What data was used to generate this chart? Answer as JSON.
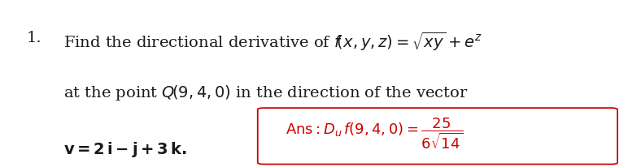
{
  "background_color": "#ffffff",
  "fig_width": 7.72,
  "fig_height": 2.07,
  "dpi": 100,
  "text_color_black": "#1a1a1a",
  "text_color_red": "#cc0000",
  "line1_number": "1.",
  "line1_main": "Find the directional derivative of $f\\left(x,y,z\\right)=\\sqrt{xy}+e^{z}$",
  "line2_main": "at the point $Q\\left(9,4,0\\right)$ in the direction of the vector",
  "line3_bold": "$\\mathbf{v=2i-j+3k.}$",
  "ans_text": "$\\mathrm{Ans}:D_{u}\\,f(9,4,0)=\\dfrac{25}{6\\sqrt{14}}$",
  "font_size_main": 14,
  "font_size_ans": 13
}
